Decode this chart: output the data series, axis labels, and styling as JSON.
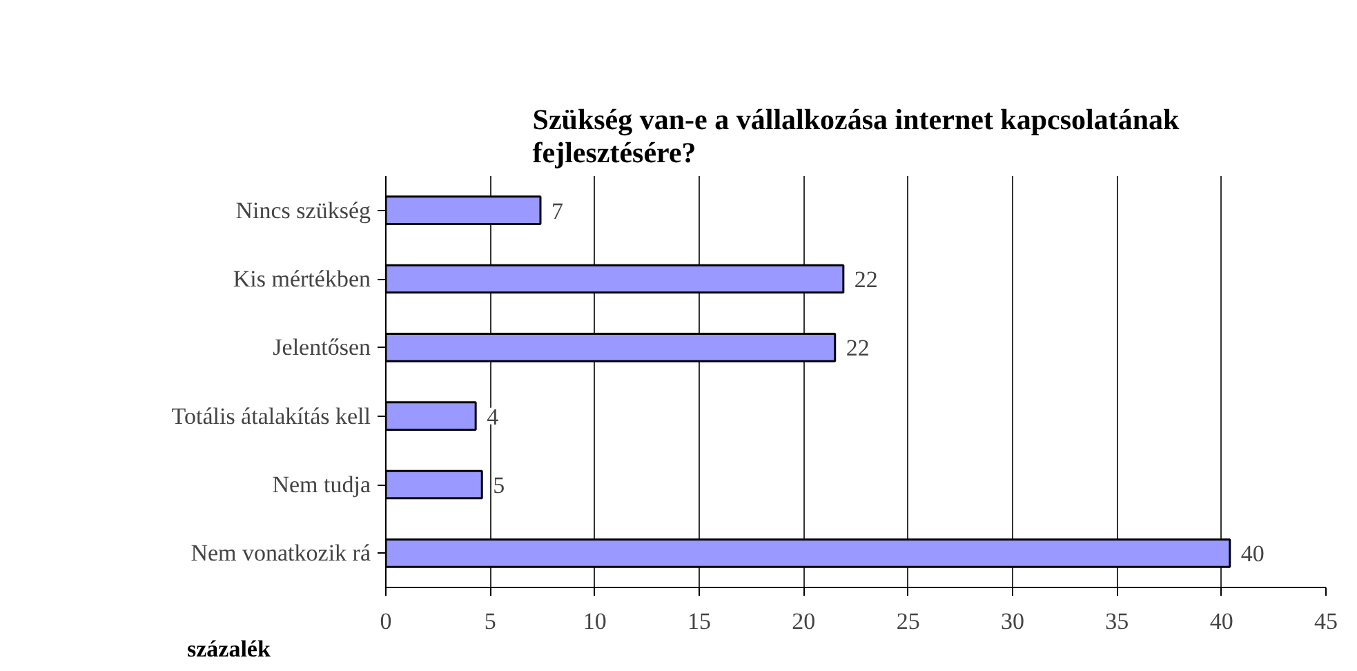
{
  "chart_data": {
    "type": "bar",
    "orientation": "horizontal",
    "title": "Szükség van-e a vállalkozása internet kapcsolatának fejlesztésére?",
    "xlabel": "százalék",
    "categories": [
      "Nincs szükség",
      "Kis mértékben",
      "Jelentősen",
      "Totális átalakítás kell",
      "Nem tudja",
      "Nem vonatkozik rá"
    ],
    "values": [
      7.4,
      21.9,
      21.5,
      4.3,
      4.6,
      40.4
    ],
    "value_labels": [
      "7",
      "22",
      "22",
      "4",
      "5",
      "40"
    ],
    "color": "#9999ff",
    "xlim": [
      0,
      45
    ],
    "xticks": [
      0,
      5,
      10,
      15,
      20,
      25,
      30,
      35,
      40,
      45
    ],
    "grid": "x"
  }
}
